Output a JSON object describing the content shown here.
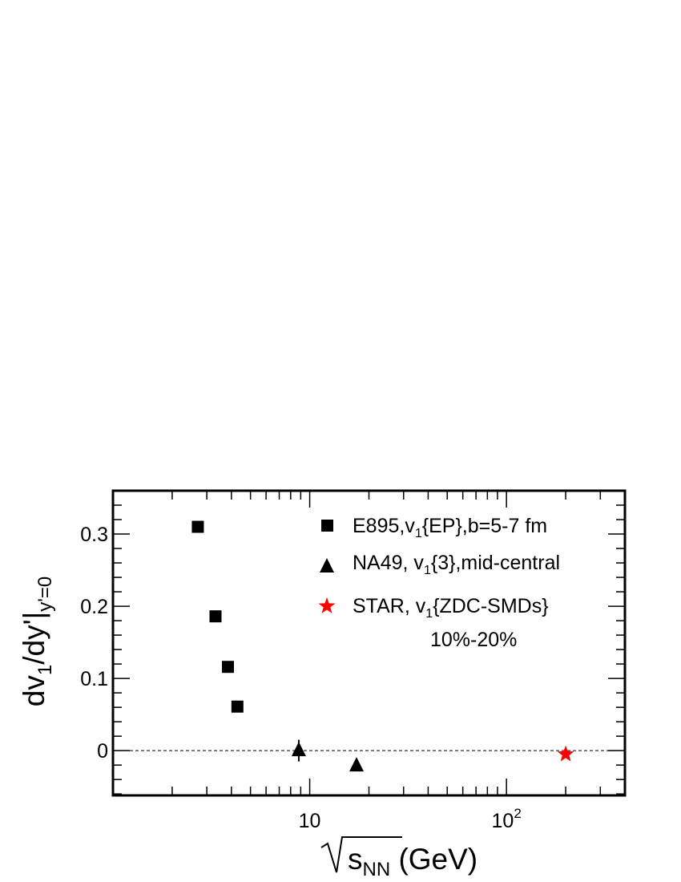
{
  "chart_data": {
    "type": "scatter",
    "x_scale": "log",
    "xlim": [
      1,
      400
    ],
    "ylim": [
      -0.062,
      0.36
    ],
    "grid": false,
    "legend_position": "top-right",
    "xlabel": {
      "root_base": "s",
      "root_sub": "NN",
      "unit": " (GeV)"
    },
    "ylabel": {
      "p1": "dv",
      "p1_sub": "1",
      "p2": "/dy'|",
      "p2_sub": "y'=0"
    },
    "x_ticks": [
      {
        "value": 10,
        "base": "10",
        "exp": ""
      },
      {
        "value": 100,
        "base": "10",
        "exp": "2"
      }
    ],
    "y_ticks": [
      {
        "value": 0,
        "label": "0"
      },
      {
        "value": 0.1,
        "label": "0.1"
      },
      {
        "value": 0.2,
        "label": "0.2"
      },
      {
        "value": 0.3,
        "label": "0.3"
      }
    ],
    "reference_line": {
      "y": 0,
      "style": "dashed"
    },
    "series": [
      {
        "marker": "square",
        "color": "#000000",
        "legend": {
          "pre": "E895,v",
          "sub": "1",
          "post": "{EP},b=5-7 fm"
        },
        "points": [
          {
            "x": 2.7,
            "y": 0.31
          },
          {
            "x": 3.32,
            "y": 0.186
          },
          {
            "x": 3.84,
            "y": 0.116
          },
          {
            "x": 4.29,
            "y": 0.061
          }
        ]
      },
      {
        "marker": "triangle",
        "color": "#000000",
        "legend": {
          "pre": "NA49, v",
          "sub": "1",
          "post": "{3},mid-central"
        },
        "points": [
          {
            "x": 8.8,
            "y": 0.0,
            "err": 0.015
          },
          {
            "x": 17.3,
            "y": -0.021
          }
        ]
      },
      {
        "marker": "star",
        "color": "#ff0000",
        "legend": {
          "pre": "STAR, v",
          "sub": "1",
          "post": "{ZDC-SMDs}",
          "line2": "10%-20%"
        },
        "points": [
          {
            "x": 200,
            "y": -0.005
          }
        ]
      }
    ]
  }
}
